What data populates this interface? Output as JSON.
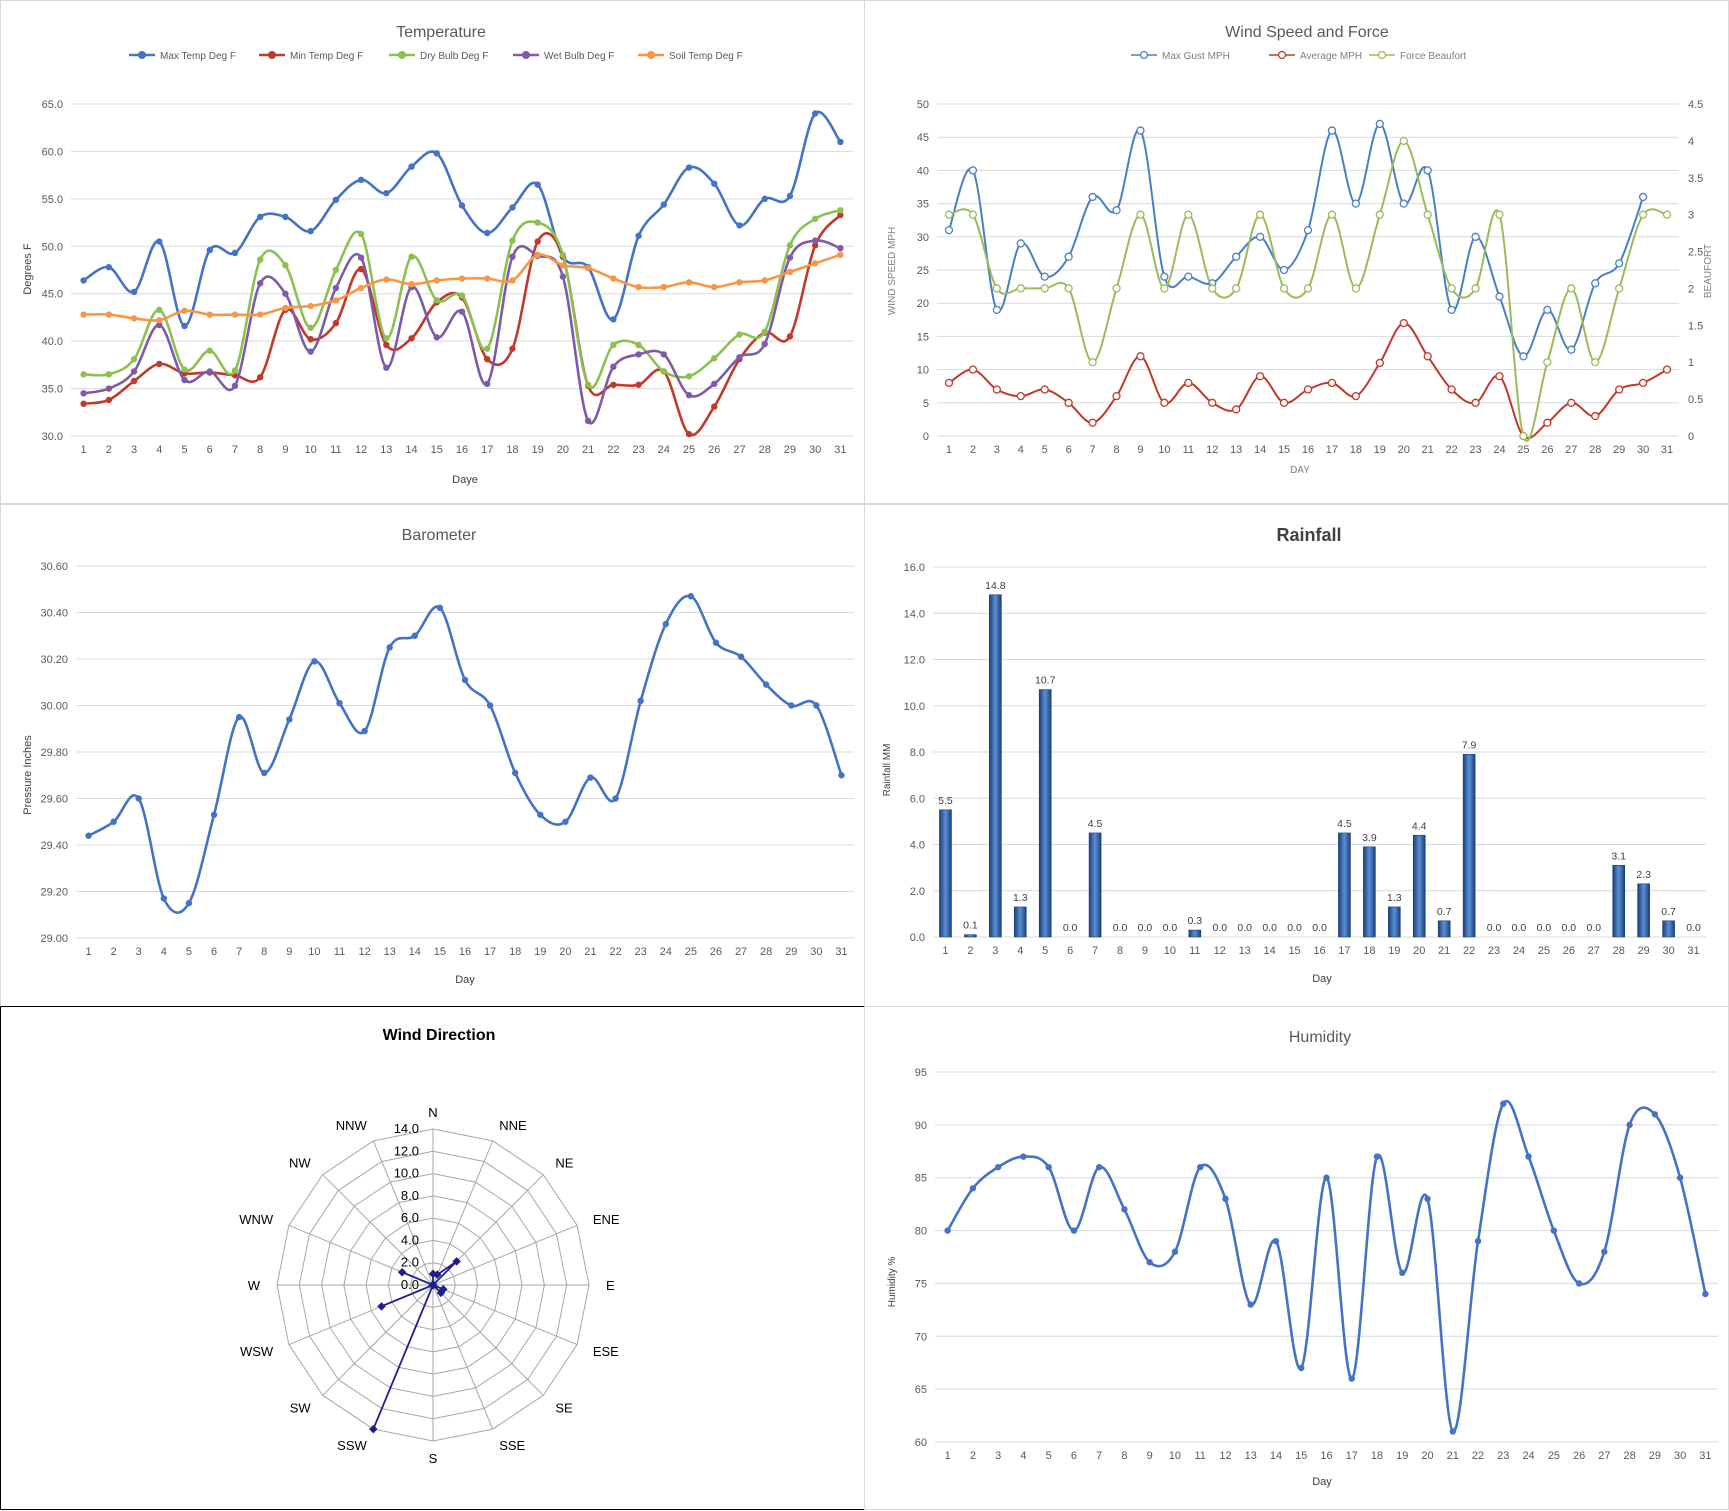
{
  "days": [
    "1",
    "2",
    "3",
    "4",
    "5",
    "6",
    "7",
    "8",
    "9",
    "10",
    "11",
    "12",
    "13",
    "14",
    "15",
    "16",
    "17",
    "18",
    "19",
    "20",
    "21",
    "22",
    "23",
    "24",
    "25",
    "26",
    "27",
    "28",
    "29",
    "30",
    "31"
  ],
  "temperature": {
    "title": "Temperature",
    "xlabel": "Daye",
    "ylabel": "Degrees F",
    "chart_data": {
      "type": "line",
      "ylim": [
        30,
        65
      ],
      "yticks": [
        "30.0",
        "35.0",
        "40.0",
        "45.0",
        "50.0",
        "55.0",
        "60.0",
        "65.0"
      ],
      "legend_position": "top",
      "series": [
        {
          "name": "Max Temp Deg F",
          "color": "#4472c4",
          "values": [
            46.4,
            47.8,
            45.2,
            50.5,
            41.6,
            49.6,
            49.3,
            53.1,
            53.1,
            51.6,
            54.9,
            57.0,
            55.6,
            58.4,
            59.8,
            54.3,
            51.4,
            54.1,
            56.5,
            48.9,
            47.8,
            42.3,
            51.1,
            54.4,
            58.3,
            56.6,
            52.2,
            55.0,
            55.3,
            64.0,
            61.0
          ]
        },
        {
          "name": "Min Temp Deg F",
          "color": "#c0392b",
          "values": [
            33.4,
            33.8,
            35.8,
            37.6,
            36.6,
            36.7,
            36.4,
            36.2,
            43.3,
            40.2,
            41.9,
            47.6,
            39.6,
            40.3,
            44.1,
            44.6,
            38.1,
            39.2,
            50.5,
            48.9,
            35.3,
            35.4,
            35.4,
            36.8,
            30.2,
            33.1,
            38.1,
            40.9,
            40.5,
            50.1,
            53.3
          ]
        },
        {
          "name": "Dry Bulb Deg F",
          "color": "#8cc152",
          "values": [
            36.5,
            36.5,
            38.1,
            43.3,
            37.0,
            39.0,
            36.9,
            48.6,
            48.0,
            41.4,
            47.5,
            51.3,
            40.3,
            48.9,
            44.3,
            44.8,
            39.2,
            50.6,
            52.5,
            49.1,
            35.4,
            39.6,
            39.6,
            36.8,
            36.3,
            38.2,
            40.7,
            41.0,
            50.1,
            52.9,
            53.8
          ]
        },
        {
          "name": "Wet Bulb Deg F",
          "color": "#7e5aa8",
          "values": [
            34.5,
            35.0,
            36.8,
            41.7,
            35.9,
            36.8,
            35.3,
            46.1,
            45.0,
            38.9,
            45.6,
            48.8,
            37.2,
            45.7,
            40.4,
            43.1,
            35.5,
            48.9,
            49.0,
            46.8,
            31.6,
            37.3,
            38.6,
            38.6,
            34.3,
            35.5,
            38.3,
            39.7,
            48.8,
            50.6,
            49.8
          ]
        },
        {
          "name": "Soil Temp Deg F",
          "color": "#f79646",
          "values": [
            42.8,
            42.8,
            42.4,
            42.2,
            43.2,
            42.8,
            42.8,
            42.8,
            43.5,
            43.7,
            44.3,
            45.6,
            46.5,
            46.0,
            46.4,
            46.6,
            46.6,
            46.4,
            49.1,
            48.0,
            47.7,
            46.6,
            45.7,
            45.7,
            46.2,
            45.7,
            46.2,
            46.4,
            47.3,
            48.2,
            49.1
          ]
        }
      ]
    }
  },
  "wind": {
    "title": "Wind Speed and Force",
    "xlabel": "DAY",
    "ylabel": "WIND SPEED MPH",
    "ylabel_right": "BEAUFORT",
    "chart_data": {
      "type": "line",
      "ylim": [
        0,
        50
      ],
      "ylim_right": [
        0,
        4.5
      ],
      "yticks": [
        "0",
        "5",
        "10",
        "15",
        "20",
        "25",
        "30",
        "35",
        "40",
        "45",
        "50"
      ],
      "yticks_right": [
        "0",
        "0.5",
        "1",
        "1.5",
        "2",
        "2.5",
        "3",
        "3.5",
        "4",
        "4.5"
      ],
      "legend_position": "top",
      "series": [
        {
          "name": "Max Gust MPH",
          "color": "#4a7fc0",
          "axis": "left",
          "values": [
            31,
            40,
            19,
            29,
            24,
            27,
            36,
            34,
            46,
            24,
            24,
            23,
            27,
            30,
            25,
            31,
            46,
            35,
            47,
            35,
            40,
            19,
            30,
            21,
            12,
            19,
            13,
            23,
            26,
            36,
            null
          ]
        },
        {
          "name": "Average MPH",
          "color": "#c0392b",
          "axis": "left",
          "values": [
            8,
            10,
            7,
            6,
            7,
            5,
            2,
            6,
            12,
            5,
            8,
            5,
            4,
            9,
            5,
            7,
            8,
            6,
            11,
            17,
            12,
            7,
            5,
            9,
            0,
            2,
            5,
            3,
            7,
            8,
            10
          ]
        },
        {
          "name": "Force Beaufort",
          "color": "#9bbb59",
          "axis": "right",
          "values": [
            3,
            3,
            2,
            2,
            2,
            2,
            1,
            2,
            3,
            2,
            3,
            2,
            2,
            3,
            2,
            2,
            3,
            2,
            3,
            4,
            3,
            2,
            2,
            3,
            0,
            1,
            2,
            1,
            2,
            3,
            3
          ]
        }
      ]
    }
  },
  "barometer": {
    "title": "Barometer",
    "xlabel": "Day",
    "ylabel": "Pressure Inches",
    "chart_data": {
      "type": "line",
      "ylim": [
        29.0,
        30.6
      ],
      "yticks": [
        "29.00",
        "29.20",
        "29.40",
        "29.60",
        "29.80",
        "30.00",
        "30.20",
        "30.40",
        "30.60"
      ],
      "series": [
        {
          "name": "",
          "color": "#4472c4",
          "values": [
            29.44,
            29.5,
            29.6,
            29.17,
            29.15,
            29.53,
            29.95,
            29.71,
            29.94,
            30.19,
            30.01,
            29.89,
            30.25,
            30.3,
            30.42,
            30.11,
            30.0,
            29.71,
            29.53,
            29.5,
            29.69,
            29.6,
            30.02,
            30.35,
            30.47,
            30.27,
            30.21,
            30.09,
            30.0,
            30.0,
            29.7
          ]
        }
      ]
    }
  },
  "rainfall": {
    "title": "Rainfall",
    "xlabel": "Day",
    "ylabel": "Rainfall MM",
    "chart_data": {
      "type": "bar",
      "ylim": [
        0,
        16
      ],
      "yticks": [
        "0.0",
        "2.0",
        "4.0",
        "6.0",
        "8.0",
        "10.0",
        "12.0",
        "14.0",
        "16.0"
      ],
      "values": [
        5.5,
        0.1,
        14.8,
        1.3,
        10.7,
        0.0,
        4.5,
        0.0,
        0.0,
        0.0,
        0.3,
        0.0,
        0.0,
        0.0,
        0.0,
        0.0,
        4.5,
        3.9,
        1.3,
        4.4,
        0.7,
        7.9,
        0.0,
        0.0,
        0.0,
        0.0,
        0.0,
        3.1,
        2.3,
        0.7,
        0.0
      ],
      "data_labels": [
        "5.5",
        "0.1",
        "14.8",
        "1.3",
        "10.7",
        "0.0",
        "4.5",
        "0.0",
        "0.0",
        "0.0",
        "0.3",
        "0.0",
        "0.0",
        "0.0",
        "0.0",
        "0.0",
        "4.5",
        "3.9",
        "1.3",
        "4.4",
        "0.7",
        "7.9",
        "0.0",
        "0.0",
        "0.0",
        "0.0",
        "0.0",
        "3.1",
        "2.3",
        "0.7",
        "0.0"
      ],
      "color": "#2e5fa3"
    }
  },
  "wind_direction": {
    "title": "Wind Direction",
    "chart_data": {
      "type": "radar",
      "rlim": [
        0,
        14
      ],
      "rticks": [
        "0.0",
        "2.0",
        "4.0",
        "6.0",
        "8.0",
        "10.0",
        "12.0",
        "14.0"
      ],
      "directions": [
        "N",
        "NNE",
        "NE",
        "ENE",
        "E",
        "ESE",
        "SE",
        "SSE",
        "S",
        "SSW",
        "SW",
        "WSW",
        "W",
        "WNW",
        "NW",
        "NNW"
      ],
      "values": [
        1,
        1,
        3,
        0,
        0,
        1,
        1,
        0,
        0,
        14,
        0,
        5,
        0,
        3,
        0,
        0
      ],
      "color": "#1f1f8c"
    }
  },
  "humidity": {
    "title": "Humidity",
    "xlabel": "Day",
    "ylabel": "Humidity %",
    "chart_data": {
      "type": "line",
      "ylim": [
        60,
        95
      ],
      "yticks": [
        "60",
        "65",
        "70",
        "75",
        "80",
        "85",
        "90",
        "95"
      ],
      "series": [
        {
          "name": "",
          "color": "#4472c4",
          "values": [
            80,
            84,
            86,
            87,
            86,
            80,
            86,
            82,
            77,
            78,
            86,
            83,
            73,
            79,
            67,
            85,
            66,
            87,
            76,
            83,
            61,
            79,
            92,
            87,
            80,
            75,
            78,
            90,
            91,
            85,
            74
          ]
        }
      ]
    }
  }
}
